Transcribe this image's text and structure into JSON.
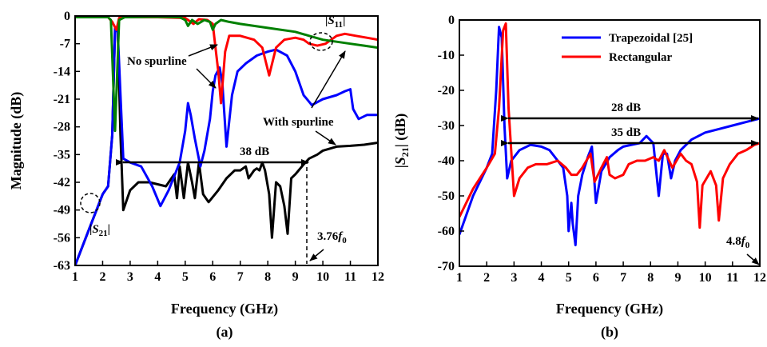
{
  "chart_data": [
    {
      "type": "line",
      "panel_label": "(a)",
      "xlabel": "Frequency (GHz)",
      "ylabel": "Magnitude (dB)",
      "xlim": [
        1,
        12
      ],
      "ylim": [
        -63,
        0
      ],
      "xticks": [
        1,
        2,
        3,
        4,
        5,
        6,
        7,
        8,
        9,
        10,
        11,
        12
      ],
      "yticks": [
        0,
        -7,
        -14,
        -21,
        -28,
        -35,
        -42,
        -49,
        -56,
        -63
      ],
      "grid": false,
      "legend": "none",
      "series": [
        {
          "color": "#000000",
          "points": [
            [
              1,
              -63
            ],
            [
              1.5,
              -54
            ],
            [
              2.0,
              -45
            ],
            [
              2.2,
              -43
            ],
            [
              2.35,
              -30
            ],
            [
              2.45,
              -3
            ],
            [
              2.55,
              -4
            ],
            [
              2.65,
              -30
            ],
            [
              2.75,
              -49
            ],
            [
              3.0,
              -44
            ],
            [
              3.3,
              -42
            ],
            [
              3.7,
              -42
            ],
            [
              4.0,
              -42.5
            ],
            [
              4.3,
              -43
            ],
            [
              4.6,
              -40
            ],
            [
              4.7,
              -46
            ],
            [
              4.8,
              -38
            ],
            [
              4.95,
              -46
            ],
            [
              5.1,
              -37
            ],
            [
              5.25,
              -42
            ],
            [
              5.35,
              -46
            ],
            [
              5.5,
              -37
            ],
            [
              5.65,
              -45
            ],
            [
              5.85,
              -47
            ],
            [
              6.2,
              -44
            ],
            [
              6.5,
              -41
            ],
            [
              6.8,
              -39
            ],
            [
              7.0,
              -39
            ],
            [
              7.2,
              -38
            ],
            [
              7.3,
              -41
            ],
            [
              7.5,
              -39
            ],
            [
              7.6,
              -38.5
            ],
            [
              7.7,
              -39
            ],
            [
              7.8,
              -37
            ],
            [
              7.9,
              -39
            ],
            [
              8.05,
              -45
            ],
            [
              8.15,
              -56
            ],
            [
              8.3,
              -42
            ],
            [
              8.45,
              -43
            ],
            [
              8.6,
              -48
            ],
            [
              8.72,
              -55
            ],
            [
              8.85,
              -41
            ],
            [
              9.0,
              -40
            ],
            [
              9.3,
              -37.5
            ],
            [
              9.5,
              -36
            ],
            [
              9.8,
              -35
            ],
            [
              10.0,
              -34
            ],
            [
              10.5,
              -33
            ],
            [
              11.0,
              -32.8
            ],
            [
              11.5,
              -32.5
            ],
            [
              12.0,
              -32
            ]
          ]
        },
        {
          "color": "#0000ff",
          "points": [
            [
              1,
              -63
            ],
            [
              1.5,
              -54
            ],
            [
              2.0,
              -45
            ],
            [
              2.2,
              -43
            ],
            [
              2.35,
              -30
            ],
            [
              2.45,
              -3
            ],
            [
              2.55,
              -4
            ],
            [
              2.65,
              -20
            ],
            [
              2.75,
              -36
            ],
            [
              3.0,
              -37
            ],
            [
              3.4,
              -38
            ],
            [
              3.8,
              -43
            ],
            [
              4.1,
              -48
            ],
            [
              4.4,
              -44
            ],
            [
              4.8,
              -37
            ],
            [
              5.0,
              -29
            ],
            [
              5.1,
              -22
            ],
            [
              5.2,
              -25
            ],
            [
              5.35,
              -31
            ],
            [
              5.55,
              -38
            ],
            [
              5.7,
              -34
            ],
            [
              5.9,
              -26
            ],
            [
              6.0,
              -19
            ],
            [
              6.1,
              -15
            ],
            [
              6.25,
              -13
            ],
            [
              6.35,
              -17
            ],
            [
              6.5,
              -33
            ],
            [
              6.7,
              -20
            ],
            [
              6.9,
              -14
            ],
            [
              7.2,
              -12
            ],
            [
              7.6,
              -10
            ],
            [
              8.0,
              -9
            ],
            [
              8.3,
              -8.5
            ],
            [
              8.7,
              -10
            ],
            [
              9.0,
              -14
            ],
            [
              9.3,
              -20
            ],
            [
              9.6,
              -22.5
            ],
            [
              10.0,
              -21
            ],
            [
              10.5,
              -20
            ],
            [
              10.8,
              -19
            ],
            [
              11.0,
              -18.5
            ],
            [
              11.1,
              -23.5
            ],
            [
              11.3,
              -26
            ],
            [
              11.6,
              -25
            ],
            [
              12.0,
              -25
            ]
          ]
        },
        {
          "color": "#ff0000",
          "points": [
            [
              1,
              -0.3
            ],
            [
              2.2,
              -0.3
            ],
            [
              2.35,
              -1.5
            ],
            [
              2.5,
              -3.5
            ],
            [
              2.6,
              -0.5
            ],
            [
              2.8,
              -0.3
            ],
            [
              4.0,
              -0.3
            ],
            [
              5.0,
              -0.5
            ],
            [
              5.3,
              -2
            ],
            [
              5.5,
              -0.8
            ],
            [
              5.8,
              -1
            ],
            [
              6.0,
              -2
            ],
            [
              6.1,
              -8
            ],
            [
              6.2,
              -14
            ],
            [
              6.3,
              -22
            ],
            [
              6.45,
              -9
            ],
            [
              6.6,
              -5
            ],
            [
              7.0,
              -5
            ],
            [
              7.5,
              -6
            ],
            [
              7.8,
              -8
            ],
            [
              8.05,
              -15
            ],
            [
              8.3,
              -8
            ],
            [
              8.6,
              -6
            ],
            [
              9.0,
              -5.5
            ],
            [
              9.3,
              -6
            ],
            [
              9.5,
              -7
            ],
            [
              9.8,
              -7.5
            ],
            [
              10.1,
              -7
            ],
            [
              10.5,
              -5
            ],
            [
              10.8,
              -4.5
            ],
            [
              11.2,
              -5
            ],
            [
              11.6,
              -5.5
            ],
            [
              12.0,
              -6
            ]
          ]
        },
        {
          "color": "#008000",
          "points": [
            [
              1,
              -0.3
            ],
            [
              2.2,
              -0.3
            ],
            [
              2.3,
              -1
            ],
            [
              2.45,
              -29
            ],
            [
              2.6,
              -1
            ],
            [
              2.8,
              -0.3
            ],
            [
              4.0,
              -0.2
            ],
            [
              4.8,
              -0.3
            ],
            [
              5.0,
              -1
            ],
            [
              5.1,
              -2.5
            ],
            [
              5.25,
              -1
            ],
            [
              5.45,
              -2
            ],
            [
              5.7,
              -1
            ],
            [
              5.9,
              -1.5
            ],
            [
              6.0,
              -3.5
            ],
            [
              6.1,
              -2
            ],
            [
              6.3,
              -1
            ],
            [
              6.6,
              -1.5
            ],
            [
              7.0,
              -2
            ],
            [
              8.0,
              -3
            ],
            [
              9.0,
              -4
            ],
            [
              9.5,
              -5
            ],
            [
              10.0,
              -6
            ],
            [
              10.5,
              -6.5
            ],
            [
              11.0,
              -7
            ],
            [
              11.5,
              -7.5
            ],
            [
              12.0,
              -8
            ]
          ]
        }
      ],
      "annotations": {
        "s11": [
          "|",
          "S",
          "11",
          "|"
        ],
        "s21": [
          "|",
          "S",
          "21",
          "|"
        ],
        "no_spurline": "No spurline",
        "with_spurline": "With spurline",
        "span_label": "38 dB",
        "freq_note": [
          "3.76",
          "f",
          "0"
        ]
      }
    },
    {
      "type": "line",
      "panel_label": "(b)",
      "xlabel": "Frequency (GHz)",
      "ylabel": [
        "|",
        "S",
        "21",
        "| (dB)"
      ],
      "xlim": [
        1,
        12
      ],
      "ylim": [
        -70,
        0
      ],
      "xticks": [
        1,
        2,
        3,
        4,
        5,
        6,
        7,
        8,
        9,
        10,
        11,
        12
      ],
      "yticks": [
        0,
        -10,
        -20,
        -30,
        -40,
        -50,
        -60,
        -70
      ],
      "grid": false,
      "legend": "top-right",
      "series": [
        {
          "name": "Trapezoidal [25]",
          "color": "#0000ff",
          "points": [
            [
              1,
              -61
            ],
            [
              1.5,
              -50
            ],
            [
              2.0,
              -42
            ],
            [
              2.2,
              -38
            ],
            [
              2.35,
              -20
            ],
            [
              2.45,
              -2
            ],
            [
              2.55,
              -5
            ],
            [
              2.65,
              -30
            ],
            [
              2.75,
              -45
            ],
            [
              2.9,
              -40
            ],
            [
              3.2,
              -37
            ],
            [
              3.6,
              -35.5
            ],
            [
              4.0,
              -36
            ],
            [
              4.3,
              -37
            ],
            [
              4.6,
              -40
            ],
            [
              4.8,
              -42
            ],
            [
              4.95,
              -50
            ],
            [
              5.0,
              -60
            ],
            [
              5.1,
              -52
            ],
            [
              5.15,
              -58
            ],
            [
              5.25,
              -64
            ],
            [
              5.35,
              -50
            ],
            [
              5.5,
              -44
            ],
            [
              5.7,
              -39
            ],
            [
              5.85,
              -36
            ],
            [
              6.0,
              -52
            ],
            [
              6.2,
              -43
            ],
            [
              6.5,
              -39
            ],
            [
              6.8,
              -37
            ],
            [
              7.0,
              -36
            ],
            [
              7.3,
              -35.5
            ],
            [
              7.6,
              -35
            ],
            [
              7.85,
              -33
            ],
            [
              8.1,
              -35
            ],
            [
              8.3,
              -50
            ],
            [
              8.45,
              -38
            ],
            [
              8.6,
              -38
            ],
            [
              8.75,
              -45
            ],
            [
              8.9,
              -40
            ],
            [
              9.1,
              -37
            ],
            [
              9.5,
              -34
            ],
            [
              10.0,
              -32
            ],
            [
              10.5,
              -31
            ],
            [
              11.0,
              -30
            ],
            [
              11.5,
              -29
            ],
            [
              12.0,
              -28
            ]
          ]
        },
        {
          "name": "Rectangular",
          "color": "#ff0000",
          "points": [
            [
              1,
              -56
            ],
            [
              1.5,
              -48
            ],
            [
              2.0,
              -42
            ],
            [
              2.3,
              -38
            ],
            [
              2.45,
              -25
            ],
            [
              2.6,
              -3
            ],
            [
              2.7,
              -1
            ],
            [
              2.8,
              -25
            ],
            [
              3.0,
              -50
            ],
            [
              3.2,
              -45
            ],
            [
              3.5,
              -42
            ],
            [
              3.8,
              -41
            ],
            [
              4.2,
              -41
            ],
            [
              4.6,
              -40
            ],
            [
              4.9,
              -42
            ],
            [
              5.1,
              -44
            ],
            [
              5.3,
              -44
            ],
            [
              5.5,
              -42
            ],
            [
              5.8,
              -38
            ],
            [
              5.95,
              -46
            ],
            [
              6.2,
              -42
            ],
            [
              6.4,
              -39
            ],
            [
              6.5,
              -44
            ],
            [
              6.7,
              -45
            ],
            [
              7.0,
              -44
            ],
            [
              7.2,
              -41
            ],
            [
              7.5,
              -40
            ],
            [
              7.8,
              -40
            ],
            [
              8.1,
              -39
            ],
            [
              8.3,
              -40
            ],
            [
              8.5,
              -37
            ],
            [
              8.8,
              -42
            ],
            [
              9.1,
              -38
            ],
            [
              9.3,
              -40
            ],
            [
              9.5,
              -41
            ],
            [
              9.7,
              -46
            ],
            [
              9.8,
              -59
            ],
            [
              9.9,
              -47
            ],
            [
              10.2,
              -43
            ],
            [
              10.4,
              -47
            ],
            [
              10.5,
              -57
            ],
            [
              10.65,
              -45
            ],
            [
              10.9,
              -41
            ],
            [
              11.2,
              -38
            ],
            [
              11.5,
              -37
            ],
            [
              11.8,
              -35.5
            ],
            [
              12.0,
              -35
            ]
          ]
        }
      ],
      "annotations": {
        "span_28": "28 dB",
        "span_35": "35 dB",
        "freq_note": [
          "4.8",
          "f",
          "0"
        ]
      }
    }
  ]
}
